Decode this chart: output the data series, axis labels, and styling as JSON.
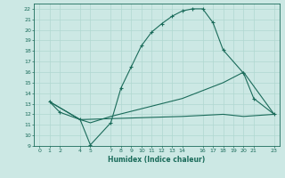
{
  "xlabel": "Humidex (Indice chaleur)",
  "bg_color": "#cce8e4",
  "grid_color": "#b0d8d0",
  "line_color": "#1a6b5a",
  "xlim": [
    -0.5,
    23.5
  ],
  "ylim": [
    9,
    22.5
  ],
  "xticks": [
    0,
    1,
    2,
    4,
    5,
    7,
    8,
    9,
    10,
    11,
    12,
    13,
    14,
    16,
    17,
    18,
    19,
    20,
    21,
    23
  ],
  "yticks": [
    9,
    10,
    11,
    12,
    13,
    14,
    15,
    16,
    17,
    18,
    19,
    20,
    21,
    22
  ],
  "curve1_x": [
    1,
    2,
    4,
    5,
    7,
    8,
    9,
    10,
    11,
    12,
    13,
    14,
    15,
    16,
    17,
    18,
    20,
    21,
    23
  ],
  "curve1_y": [
    13.2,
    12.2,
    11.5,
    9.1,
    11.2,
    14.5,
    16.5,
    18.5,
    19.8,
    20.6,
    21.3,
    21.8,
    22.0,
    22.0,
    20.7,
    18.1,
    15.9,
    13.5,
    12.0
  ],
  "curve2_x": [
    1,
    4,
    5,
    7,
    14,
    18,
    20,
    23
  ],
  "curve2_y": [
    13.2,
    11.5,
    11.2,
    11.8,
    13.5,
    15.0,
    16.0,
    12.0
  ],
  "curve3_x": [
    1,
    4,
    14,
    18,
    20,
    23
  ],
  "curve3_y": [
    13.2,
    11.5,
    11.8,
    12.0,
    11.8,
    12.0
  ]
}
